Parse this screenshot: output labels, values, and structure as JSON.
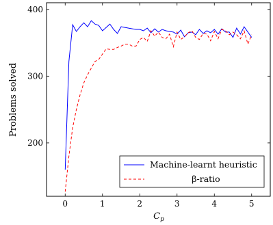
{
  "chart_data": {
    "type": "line",
    "xlabel": "C_p",
    "ylabel": "Problems solved",
    "xlim": [
      -0.5,
      5.5
    ],
    "ylim": [
      120,
      410
    ],
    "xticks": [
      0,
      1,
      2,
      3,
      4,
      5
    ],
    "yticks": [
      200,
      300,
      400
    ],
    "grid": false,
    "legend_position": "bottom-right",
    "series": [
      {
        "name": "Machine-learnt heuristic",
        "color": "#0000ff",
        "dash": "solid",
        "x": [
          0,
          0.1,
          0.2,
          0.3,
          0.4,
          0.5,
          0.6,
          0.7,
          0.8,
          0.9,
          1.0,
          1.1,
          1.2,
          1.3,
          1.4,
          1.5,
          1.6,
          1.7,
          1.8,
          1.9,
          2.0,
          2.1,
          2.2,
          2.3,
          2.4,
          2.5,
          2.6,
          2.7,
          2.8,
          2.9,
          3.0,
          3.1,
          3.2,
          3.3,
          3.4,
          3.5,
          3.6,
          3.7,
          3.8,
          3.9,
          4.0,
          4.1,
          4.2,
          4.3,
          4.4,
          4.5,
          4.6,
          4.7,
          4.8,
          4.9,
          5.0
        ],
        "y": [
          160,
          322,
          377,
          367,
          374,
          380,
          374,
          383,
          378,
          376,
          368,
          373,
          378,
          370,
          364,
          374,
          373,
          372,
          371,
          370,
          370,
          368,
          372,
          365,
          371,
          366,
          370,
          368,
          367,
          366,
          363,
          369,
          359,
          365,
          366,
          362,
          370,
          364,
          368,
          365,
          370,
          363,
          371,
          366,
          366,
          358,
          372,
          363,
          374,
          366,
          358
        ]
      },
      {
        "name": "β-ratio",
        "color": "#ff0000",
        "dash": "dashed",
        "x": [
          0,
          0.1,
          0.2,
          0.3,
          0.4,
          0.5,
          0.6,
          0.7,
          0.8,
          0.9,
          1.0,
          1.1,
          1.2,
          1.3,
          1.4,
          1.5,
          1.6,
          1.7,
          1.8,
          1.9,
          2.0,
          2.1,
          2.2,
          2.3,
          2.4,
          2.5,
          2.6,
          2.7,
          2.8,
          2.9,
          3.0,
          3.1,
          3.2,
          3.3,
          3.4,
          3.5,
          3.6,
          3.7,
          3.8,
          3.9,
          4.0,
          4.1,
          4.2,
          4.3,
          4.4,
          4.5,
          4.6,
          4.7,
          4.8,
          4.9,
          5.0
        ],
        "y": [
          127,
          180,
          223,
          250,
          272,
          290,
          302,
          312,
          322,
          325,
          333,
          341,
          340,
          340,
          343,
          345,
          348,
          348,
          345,
          345,
          355,
          358,
          352,
          368,
          360,
          366,
          358,
          356,
          363,
          344,
          366,
          355,
          359,
          365,
          368,
          358,
          355,
          364,
          363,
          353,
          367,
          356,
          370,
          368,
          362,
          366,
          362,
          356,
          368,
          348,
          362
        ]
      }
    ]
  }
}
